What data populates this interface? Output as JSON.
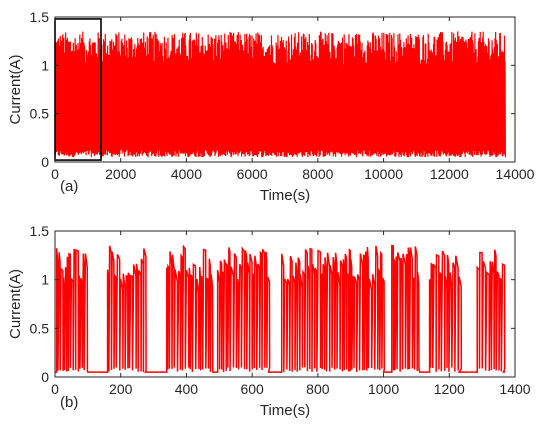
{
  "chart_data": [
    {
      "type": "line",
      "panel_label": "(a)",
      "xlabel": "Time(s)",
      "ylabel": "Current(A)",
      "xlim": [
        0,
        14000
      ],
      "ylim": [
        0,
        1.5
      ],
      "xticks": [
        0,
        2000,
        4000,
        6000,
        8000,
        10000,
        12000,
        14000
      ],
      "yticks": [
        0,
        0.5,
        1,
        1.5
      ],
      "xtick_labels": [
        "0",
        "2000",
        "4000",
        "6000",
        "8000",
        "10000",
        "12000",
        "14000"
      ],
      "ytick_labels": [
        "0",
        "0.5",
        "1",
        "1.5"
      ],
      "grid": false,
      "series_color": "#ff0000",
      "signal": {
        "x_end": 13700,
        "low_level": 0.05,
        "high_range": [
          1.0,
          1.35
        ],
        "repeat_period": 1400
      },
      "highlight_box": {
        "x": [
          0,
          1400
        ],
        "y": [
          0.02,
          1.48
        ],
        "color": "#000000"
      }
    },
    {
      "type": "line",
      "panel_label": "(b)",
      "xlabel": "Time(s)",
      "ylabel": "Current(A)",
      "xlim": [
        0,
        1400
      ],
      "ylim": [
        0,
        1.5
      ],
      "xticks": [
        0,
        200,
        400,
        600,
        800,
        1000,
        1200,
        1400
      ],
      "yticks": [
        0,
        0.5,
        1,
        1.5
      ],
      "xtick_labels": [
        "0",
        "200",
        "400",
        "600",
        "800",
        "1000",
        "1200",
        "1400"
      ],
      "ytick_labels": [
        "0",
        "0.5",
        "1",
        "1.5"
      ],
      "grid": false,
      "series_color": "#ff0000",
      "signal": {
        "x_end": 1370,
        "low_level": 0.05,
        "high_range": [
          1.0,
          1.35
        ],
        "active_intervals": [
          [
            5,
            100
          ],
          [
            160,
            275
          ],
          [
            340,
            480
          ],
          [
            495,
            650
          ],
          [
            690,
            1000
          ],
          [
            1025,
            1110
          ],
          [
            1140,
            1230
          ],
          [
            1285,
            1365
          ]
        ]
      }
    }
  ]
}
